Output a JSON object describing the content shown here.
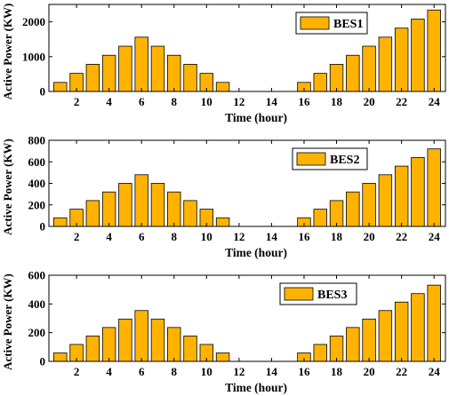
{
  "chart_data": [
    {
      "type": "bar",
      "x": [
        1,
        2,
        3,
        4,
        5,
        6,
        7,
        8,
        9,
        10,
        11,
        12,
        13,
        14,
        15,
        16,
        17,
        18,
        19,
        20,
        21,
        22,
        23,
        24
      ],
      "values": [
        260,
        520,
        780,
        1040,
        1300,
        1560,
        1300,
        1040,
        780,
        520,
        260,
        0,
        0,
        0,
        0,
        260,
        520,
        780,
        1040,
        1300,
        1560,
        1820,
        2080,
        2340
      ],
      "xticks": [
        2,
        4,
        6,
        8,
        10,
        12,
        14,
        16,
        18,
        20,
        22,
        24
      ],
      "yticks": [
        0,
        1000,
        2000
      ],
      "xlim": [
        0.3,
        24.7
      ],
      "ylim": [
        0,
        2500
      ],
      "xlabel": "Time (hour)",
      "ylabel": "Active Power (KW)",
      "legend": "BES1",
      "legend_position": "top-right",
      "bar_color": "#FFB300"
    },
    {
      "type": "bar",
      "x": [
        1,
        2,
        3,
        4,
        5,
        6,
        7,
        8,
        9,
        10,
        11,
        12,
        13,
        14,
        15,
        16,
        17,
        18,
        19,
        20,
        21,
        22,
        23,
        24
      ],
      "values": [
        80,
        160,
        240,
        320,
        400,
        480,
        400,
        320,
        240,
        160,
        80,
        0,
        0,
        0,
        0,
        80,
        160,
        240,
        320,
        400,
        480,
        560,
        640,
        720
      ],
      "xticks": [
        2,
        4,
        6,
        8,
        10,
        12,
        14,
        16,
        18,
        20,
        22,
        24
      ],
      "yticks": [
        0,
        200,
        400,
        600,
        800
      ],
      "xlim": [
        0.3,
        24.7
      ],
      "ylim": [
        0,
        800
      ],
      "xlabel": "Time (hour)",
      "ylabel": "Active Power (KW)",
      "legend": "BES2",
      "legend_position": "top-right",
      "bar_color": "#FFB300"
    },
    {
      "type": "bar",
      "x": [
        1,
        2,
        3,
        4,
        5,
        6,
        7,
        8,
        9,
        10,
        11,
        12,
        13,
        14,
        15,
        16,
        17,
        18,
        19,
        20,
        21,
        22,
        23,
        24
      ],
      "values": [
        59,
        118,
        177,
        236,
        295,
        354,
        295,
        236,
        177,
        118,
        59,
        0,
        0,
        0,
        0,
        59,
        118,
        177,
        236,
        295,
        354,
        413,
        472,
        531
      ],
      "xticks": [
        2,
        4,
        6,
        8,
        10,
        12,
        14,
        16,
        18,
        20,
        22,
        24
      ],
      "yticks": [
        0,
        200,
        400,
        600
      ],
      "xlim": [
        0.3,
        24.7
      ],
      "ylim": [
        0,
        600
      ],
      "xlabel": "Time (hour)",
      "ylabel": "Active Power (KW)",
      "legend": "BES3",
      "legend_position": "top-right",
      "bar_color": "#FFB300"
    }
  ]
}
